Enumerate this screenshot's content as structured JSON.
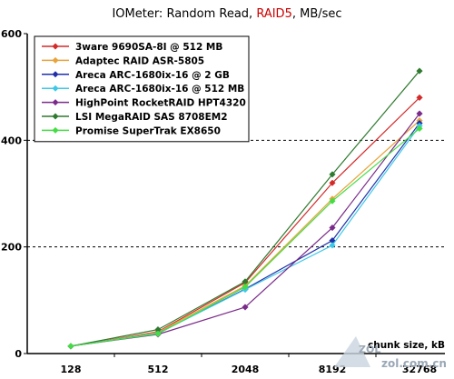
{
  "chart_data": {
    "type": "line",
    "title_parts": [
      {
        "text": "IOMeter: Random Read, ",
        "color": "#000000"
      },
      {
        "text": "RAID5",
        "color": "#cc0000"
      },
      {
        "text": ", MB/sec",
        "color": "#000000"
      }
    ],
    "xlabel": "chunk size, kB",
    "ylabel": "",
    "categories": [
      "128",
      "512",
      "2048",
      "8192",
      "32768"
    ],
    "ylim": [
      0,
      600
    ],
    "yticks": [
      0,
      200,
      400,
      600
    ],
    "grid": "dashed horizontal at 200 and 400",
    "legend_position": "top-left",
    "series": [
      {
        "name": "3ware 9690SA-8I @ 512 MB",
        "color": "#d42a2a",
        "values": [
          14,
          41,
          133,
          320,
          480
        ]
      },
      {
        "name": "Adaptec RAID ASR-5805",
        "color": "#e8a33a",
        "values": [
          14,
          40,
          127,
          290,
          437
        ]
      },
      {
        "name": "Areca ARC-1680ix-16 @ 2 GB",
        "color": "#1f2fa8",
        "values": [
          14,
          38,
          121,
          212,
          432
        ]
      },
      {
        "name": "Areca ARC-1680ix-16 @ 512 MB",
        "color": "#3ec8e8",
        "values": [
          14,
          38,
          120,
          203,
          427
        ]
      },
      {
        "name": "HighPoint RocketRAID HPT4320",
        "color": "#7a2a8a",
        "values": [
          14,
          36,
          87,
          236,
          450
        ]
      },
      {
        "name": "LSI MegaRAID SAS 8708EM2",
        "color": "#2f7a2f",
        "values": [
          14,
          45,
          135,
          336,
          530
        ]
      },
      {
        "name": "Promise SuperTrak EX8650",
        "color": "#44dd44",
        "values": [
          14,
          37,
          125,
          286,
          422
        ]
      }
    ]
  },
  "watermark": {
    "line1": "ZOL",
    "line2": "zol.com.cn"
  }
}
